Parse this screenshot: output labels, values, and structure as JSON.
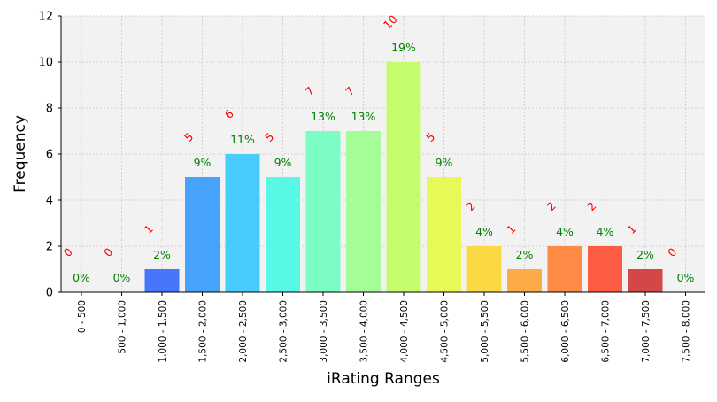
{
  "chart_data": {
    "type": "bar",
    "xlabel": "iRating Ranges",
    "ylabel": "Frequency",
    "ylim": [
      0,
      12
    ],
    "yticks": [
      0,
      2,
      4,
      6,
      8,
      10,
      12
    ],
    "grid": true,
    "categories": [
      "0 - 500",
      "500 - 1,000",
      "1,000 - 1,500",
      "1,500 - 2,000",
      "2,000 - 2,500",
      "2,500 - 3,000",
      "3,000 - 3,500",
      "3,500 - 4,000",
      "4,000 - 4,500",
      "4,500 - 5,000",
      "5,000 - 5,500",
      "5,500 - 6,000",
      "6,000 - 6,500",
      "6,500 - 7,000",
      "7,000 - 7,500",
      "7,500 - 8,000"
    ],
    "values": [
      0,
      0,
      1,
      5,
      6,
      5,
      7,
      7,
      10,
      5,
      2,
      1,
      2,
      2,
      1,
      0
    ],
    "count_labels": [
      "0",
      "0",
      "1",
      "5",
      "6",
      "5",
      "7",
      "7",
      "10",
      "5",
      "2",
      "1",
      "2",
      "2",
      "1",
      "0"
    ],
    "percent_labels": [
      "0%",
      "0%",
      "2%",
      "9%",
      "11%",
      "9%",
      "13%",
      "13%",
      "19%",
      "9%",
      "4%",
      "2%",
      "4%",
      "4%",
      "2%",
      "0%"
    ],
    "colors": [
      "#3f5df5",
      "#3f5df5",
      "#4876fa",
      "#46a2fb",
      "#47ccfb",
      "#59f7e6",
      "#7cfdc4",
      "#a5fd97",
      "#c5fc6d",
      "#e8f857",
      "#fbd944",
      "#fdab46",
      "#fd8a45",
      "#fd5b42",
      "#d44747",
      "#d44747"
    ],
    "count_label_color": "#ff0000",
    "percent_label_color": "#008000"
  }
}
